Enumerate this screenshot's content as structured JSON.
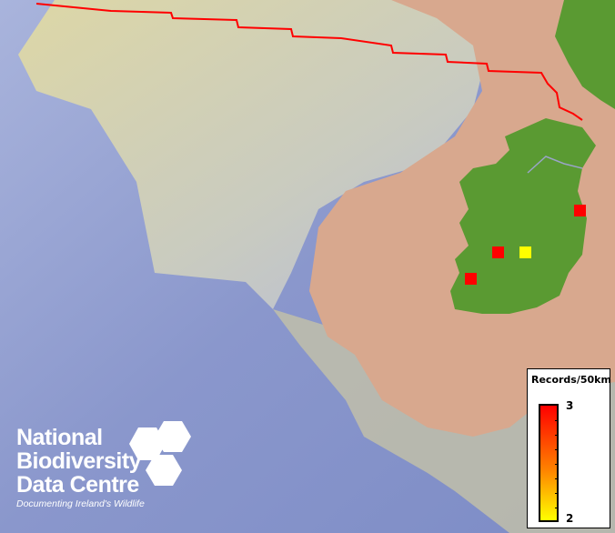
{
  "legend": {
    "title": "Records/50km",
    "max_label": "3",
    "min_label": "2",
    "gradient": [
      "#ffff00",
      "#ff0000"
    ]
  },
  "logo": {
    "line1": "National",
    "line2": "Biodiversity",
    "line3": "Data Centre",
    "tagline": "Documenting Ireland's Wildlife"
  },
  "colors": {
    "boundary": "#ff0000",
    "sea_deep": "#8a97cc",
    "shelf": "#e2dcb2",
    "land_low": "#d8a88e",
    "land_ireland": "#5a9a32"
  },
  "records": [
    {
      "value": 3,
      "color": "#ff0000"
    },
    {
      "value": 3,
      "color": "#ff0000"
    },
    {
      "value": 2,
      "color": "#ffff00"
    },
    {
      "value": 3,
      "color": "#ff0000"
    }
  ]
}
